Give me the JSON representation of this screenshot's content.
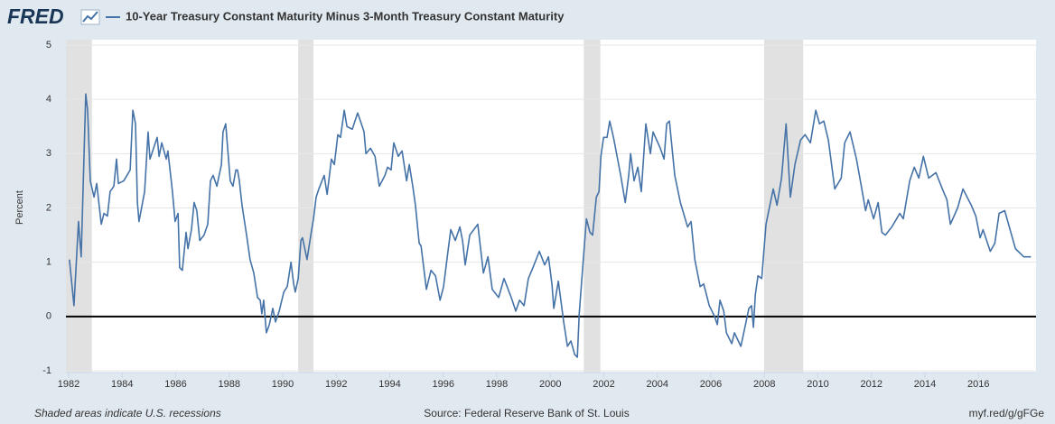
{
  "brand": "FRED",
  "footer": {
    "note": "Shaded areas indicate U.S. recessions",
    "source": "Source: Federal Reserve Bank of St. Louis",
    "link": "myf.red/g/gFGe"
  },
  "chart_data": {
    "type": "line",
    "ylabel": "Percent",
    "xlim": [
      1981.9,
      2018.15
    ],
    "ylim": [
      -1,
      5
    ],
    "xticks": [
      1982,
      1984,
      1986,
      1988,
      1990,
      1992,
      1994,
      1996,
      1998,
      2000,
      2002,
      2004,
      2006,
      2008,
      2010,
      2012,
      2014,
      2016
    ],
    "yticks": [
      -1,
      0,
      1,
      2,
      3,
      4,
      5
    ],
    "grid": true,
    "zero_line_color": "#000000",
    "recession_color": "#e1e1e1",
    "recessions": [
      [
        1981.9,
        1982.87
      ],
      [
        1990.58,
        1991.15
      ],
      [
        2001.25,
        2001.87
      ],
      [
        2007.99,
        2009.45
      ]
    ],
    "x": [
      1982.03,
      1982.2,
      1982.37,
      1982.47,
      1982.64,
      1982.71,
      1982.81,
      1982.95,
      1983.05,
      1983.22,
      1983.32,
      1983.45,
      1983.55,
      1983.69,
      1983.79,
      1983.86,
      1984.06,
      1984.3,
      1984.4,
      1984.5,
      1984.57,
      1984.63,
      1984.84,
      1984.97,
      1985.04,
      1985.31,
      1985.38,
      1985.48,
      1985.65,
      1985.71,
      1985.88,
      1985.98,
      1986.09,
      1986.15,
      1986.25,
      1986.39,
      1986.46,
      1986.59,
      1986.69,
      1986.79,
      1986.9,
      1987.06,
      1987.2,
      1987.3,
      1987.4,
      1987.54,
      1987.71,
      1987.77,
      1987.87,
      1988.04,
      1988.14,
      1988.25,
      1988.31,
      1988.38,
      1988.48,
      1988.65,
      1988.78,
      1988.92,
      1989.06,
      1989.16,
      1989.22,
      1989.29,
      1989.39,
      1989.5,
      1989.63,
      1989.73,
      1989.87,
      1990.04,
      1990.17,
      1990.31,
      1990.41,
      1990.47,
      1990.58,
      1990.68,
      1990.74,
      1990.91,
      1991.05,
      1991.15,
      1991.25,
      1991.35,
      1991.55,
      1991.66,
      1991.82,
      1991.93,
      1992.06,
      1992.16,
      1992.3,
      1992.4,
      1992.6,
      1992.8,
      1992.94,
      1993.04,
      1993.11,
      1993.28,
      1993.45,
      1993.61,
      1993.82,
      1993.92,
      1994.05,
      1994.15,
      1994.32,
      1994.46,
      1994.63,
      1994.73,
      1994.86,
      1994.96,
      1995.1,
      1995.17,
      1995.37,
      1995.54,
      1995.71,
      1995.88,
      1996.01,
      1996.15,
      1996.28,
      1996.45,
      1996.62,
      1996.72,
      1996.82,
      1996.99,
      1997.29,
      1997.5,
      1997.67,
      1997.83,
      1998.07,
      1998.27,
      1998.54,
      1998.71,
      1998.85,
      1999.02,
      1999.18,
      1999.35,
      1999.59,
      1999.79,
      1999.93,
      2000.06,
      2000.13,
      2000.3,
      2000.5,
      2000.64,
      2000.77,
      2000.91,
      2001.01,
      2001.08,
      2001.21,
      2001.35,
      2001.48,
      2001.58,
      2001.72,
      2001.82,
      2001.89,
      2001.99,
      2002.12,
      2002.22,
      2002.36,
      2002.63,
      2002.8,
      2002.93,
      2003,
      2003.13,
      2003.27,
      2003.4,
      2003.57,
      2003.74,
      2003.84,
      2004.11,
      2004.25,
      2004.35,
      2004.45,
      2004.65,
      2004.86,
      2005.13,
      2005.26,
      2005.4,
      2005.6,
      2005.73,
      2005.94,
      2006.14,
      2006.24,
      2006.34,
      2006.48,
      2006.58,
      2006.78,
      2006.88,
      2007.12,
      2007.25,
      2007.42,
      2007.52,
      2007.59,
      2007.66,
      2007.76,
      2007.9,
      2008.06,
      2008.33,
      2008.47,
      2008.64,
      2008.81,
      2008.97,
      2009.14,
      2009.35,
      2009.52,
      2009.72,
      2009.92,
      2010.06,
      2010.22,
      2010.39,
      2010.63,
      2010.87,
      2011,
      2011.2,
      2011.44,
      2011.64,
      2011.78,
      2011.88,
      2012.08,
      2012.25,
      2012.39,
      2012.52,
      2012.76,
      2013.06,
      2013.19,
      2013.43,
      2013.6,
      2013.77,
      2013.94,
      2014.14,
      2014.41,
      2014.65,
      2014.82,
      2014.95,
      2015.22,
      2015.42,
      2015.73,
      2015.9,
      2016.06,
      2016.17,
      2016.44,
      2016.61,
      2016.77,
      2016.98,
      2017.18,
      2017.38,
      2017.69,
      2017.96
    ],
    "series": [
      {
        "name": "10-Year Treasury Constant Maturity Minus 3-Month Treasury Constant Maturity",
        "color": "#4572a7",
        "values": [
          1.05,
          0.2,
          1.75,
          1.1,
          4.1,
          3.8,
          2.5,
          2.2,
          2.45,
          1.7,
          1.9,
          1.85,
          2.3,
          2.4,
          2.9,
          2.45,
          2.5,
          2.7,
          3.8,
          3.55,
          2.1,
          1.75,
          2.3,
          3.4,
          2.9,
          3.3,
          2.95,
          3.2,
          2.9,
          3.05,
          2.3,
          1.75,
          1.9,
          0.9,
          0.85,
          1.55,
          1.25,
          1.6,
          2.1,
          1.95,
          1.4,
          1.5,
          1.7,
          2.5,
          2.6,
          2.4,
          2.8,
          3.4,
          3.55,
          2.5,
          2.4,
          2.7,
          2.7,
          2.5,
          2.05,
          1.5,
          1.05,
          0.8,
          0.35,
          0.3,
          0.05,
          0.3,
          -0.3,
          -0.15,
          0.15,
          -0.1,
          0.1,
          0.45,
          0.55,
          1,
          0.6,
          0.45,
          0.7,
          1.4,
          1.45,
          1.05,
          1.5,
          1.8,
          2.2,
          2.35,
          2.6,
          2.25,
          2.9,
          2.8,
          3.35,
          3.3,
          3.8,
          3.5,
          3.45,
          3.75,
          3.55,
          3.4,
          3,
          3.1,
          2.95,
          2.4,
          2.6,
          2.75,
          2.7,
          3.2,
          2.95,
          3.05,
          2.5,
          2.8,
          2.4,
          2.05,
          1.35,
          1.3,
          0.5,
          0.85,
          0.75,
          0.3,
          0.55,
          1.1,
          1.6,
          1.4,
          1.65,
          1.4,
          0.95,
          1.5,
          1.7,
          0.8,
          1.1,
          0.5,
          0.35,
          0.7,
          0.35,
          0.1,
          0.3,
          0.2,
          0.7,
          0.9,
          1.2,
          0.95,
          1.1,
          0.6,
          0.15,
          0.65,
          -0.1,
          -0.55,
          -0.45,
          -0.7,
          -0.75,
          0.05,
          0.9,
          1.8,
          1.55,
          1.5,
          2.2,
          2.3,
          2.95,
          3.3,
          3.3,
          3.6,
          3.3,
          2.6,
          2.1,
          2.6,
          3,
          2.5,
          2.75,
          2.3,
          3.55,
          3,
          3.4,
          3.1,
          2.9,
          3.55,
          3.6,
          2.6,
          2.1,
          1.65,
          1.75,
          1.05,
          0.55,
          0.6,
          0.2,
          0,
          -0.15,
          0.3,
          0.1,
          -0.3,
          -0.5,
          -0.3,
          -0.55,
          -0.25,
          0.15,
          0.2,
          -0.2,
          0.4,
          0.75,
          0.7,
          1.7,
          2.35,
          2.05,
          2.55,
          3.55,
          2.2,
          2.8,
          3.25,
          3.35,
          3.2,
          3.8,
          3.55,
          3.6,
          3.25,
          2.35,
          2.55,
          3.2,
          3.4,
          2.9,
          2.35,
          1.95,
          2.15,
          1.8,
          2.1,
          1.55,
          1.5,
          1.65,
          1.9,
          1.8,
          2.5,
          2.75,
          2.55,
          2.95,
          2.55,
          2.65,
          2.35,
          2.15,
          1.7,
          2,
          2.35,
          2.05,
          1.85,
          1.45,
          1.6,
          1.2,
          1.35,
          1.9,
          1.95,
          1.6,
          1.25,
          1.1,
          1.1
        ]
      }
    ]
  }
}
